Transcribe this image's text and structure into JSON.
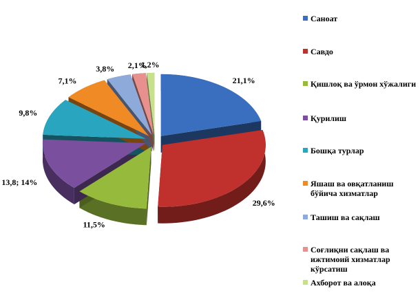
{
  "chart_data": {
    "type": "pie",
    "categories": [
      "Саноат",
      "Савдо",
      "Қишлоқ ва ўрмон хўжалиги",
      "Қурилиш",
      "Бошқа турлар",
      "Яшаш ва овқатланиш бўйича хизматлар",
      "Ташиш ва сақлаш",
      "Соғлиқни сақлаш ва ижтимоий хизматлар кўрсатиш",
      "Ахборот ва алоқа"
    ],
    "values": [
      21.1,
      29.6,
      11.5,
      13.8,
      9.8,
      7.1,
      3.8,
      2.1,
      1.2
    ],
    "value_labels": [
      "21,1%",
      "29,6%",
      "11,5%",
      "13,8; 14%",
      "9,8%",
      "7,1%",
      "3,8%",
      "2,1%",
      "1,2%"
    ],
    "colors": [
      "#3a6fbf",
      "#c0302c",
      "#96bb3c",
      "#7a4f9e",
      "#2aa5c0",
      "#f08a24",
      "#8eaadb",
      "#e8908e",
      "#c6e08c"
    ],
    "legend": "right"
  }
}
